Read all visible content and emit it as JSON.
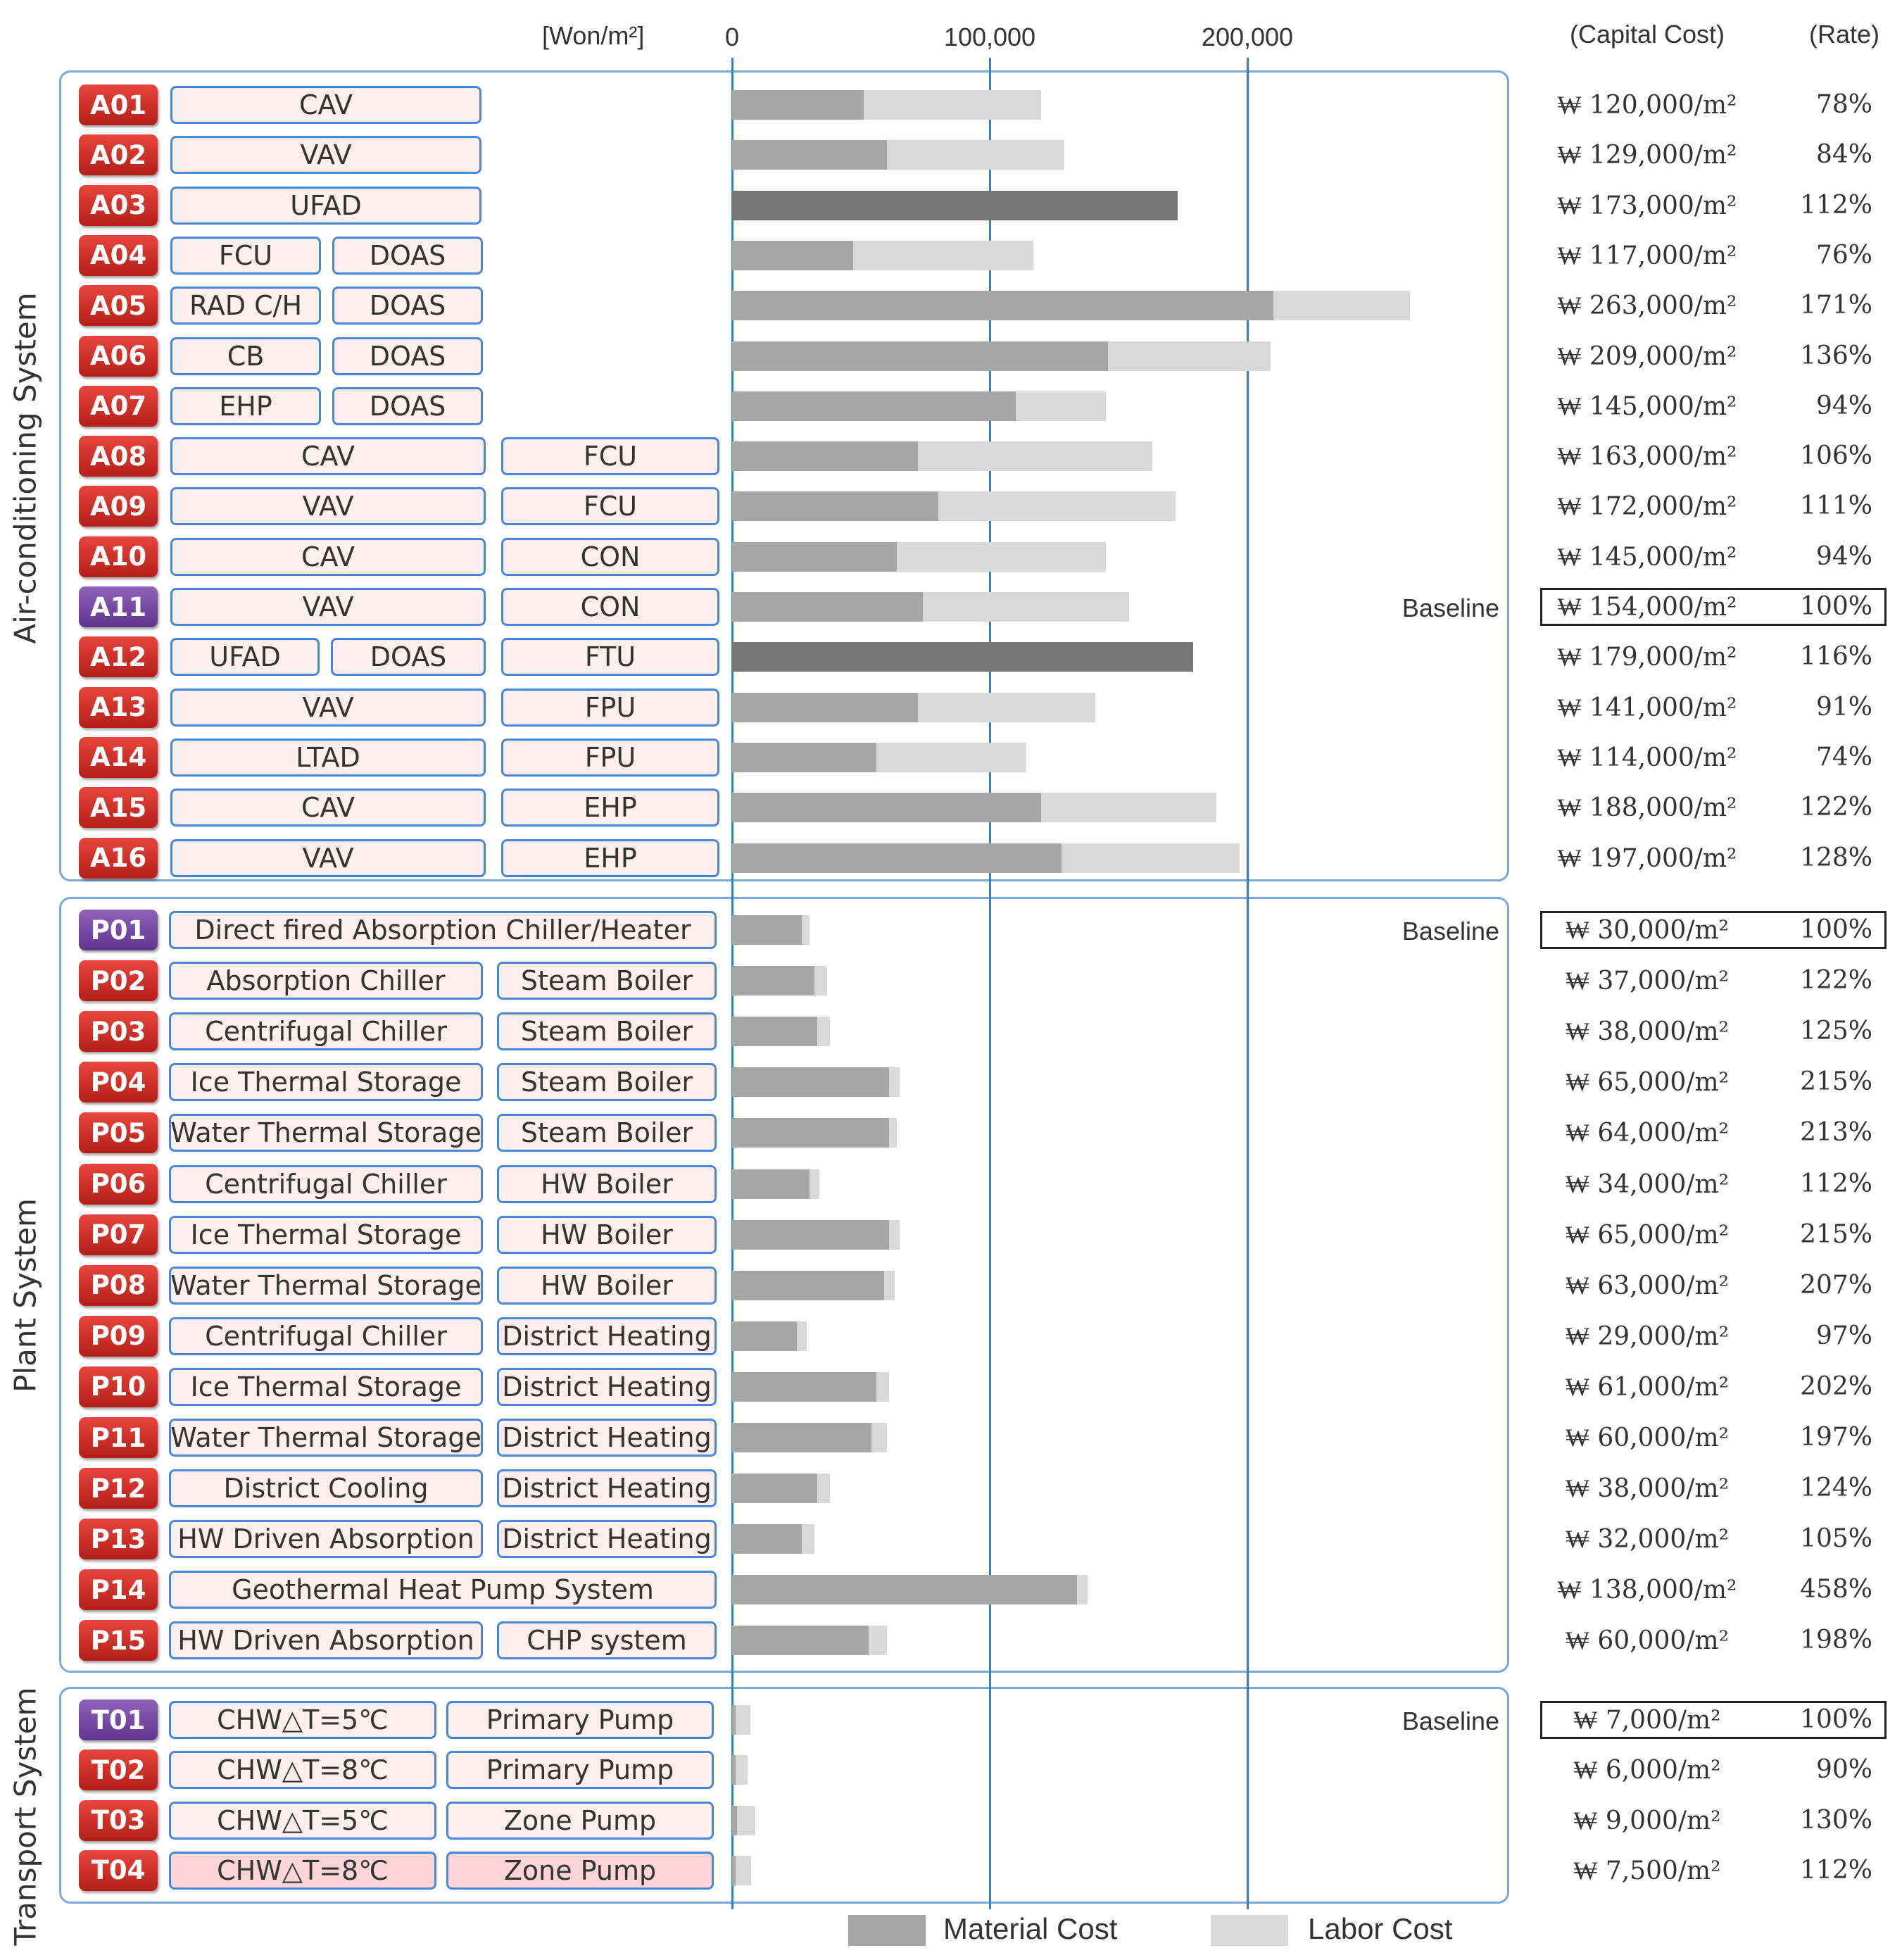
{
  "header": {
    "unit_label": "[Won/m²]",
    "capital_cost_header": "(Capital  Cost)",
    "rate_header": "(Rate)"
  },
  "sections": {
    "air": "Air-conditioning System",
    "plant": "Plant System",
    "transport": "Transport System"
  },
  "legend": {
    "material": "Material Cost",
    "labor": "Labor Cost"
  },
  "colors": {
    "material": "#a6a6a6",
    "labor": "#d9d9d9",
    "single_cost": "#767676",
    "badge_red": "#c8281f",
    "badge_purple": "#6e42a0",
    "axis": "#2f7ed8"
  },
  "chart_data": {
    "type": "bar",
    "orientation": "horizontal",
    "stacked": true,
    "xlim": [
      0,
      300000
    ],
    "ticks": [
      "0",
      "100,000",
      "200,000"
    ],
    "tick_values": [
      0,
      100000,
      200000
    ],
    "rows": [
      {
        "id": "A01",
        "components": [
          "CAV"
        ],
        "material": 51000,
        "labor": 69000,
        "cost": "₩ 120,000/m²",
        "rate": "78%"
      },
      {
        "id": "A02",
        "components": [
          "VAV"
        ],
        "material": 60000,
        "labor": 69000,
        "cost": "₩ 129,000/m²",
        "rate": "84%"
      },
      {
        "id": "A03",
        "components": [
          "UFAD"
        ],
        "single": 173000,
        "cost": "₩ 173,000/m²",
        "rate": "112%"
      },
      {
        "id": "A04",
        "components": [
          "FCU",
          "DOAS"
        ],
        "material": 47000,
        "labor": 70000,
        "cost": "₩ 117,000/m²",
        "rate": "76%"
      },
      {
        "id": "A05",
        "components": [
          "RAD C/H",
          "DOAS"
        ],
        "material": 210000,
        "labor": 53000,
        "cost": "₩ 263,000/m²",
        "rate": "171%"
      },
      {
        "id": "A06",
        "components": [
          "CB",
          "DOAS"
        ],
        "material": 146000,
        "labor": 63000,
        "cost": "₩ 209,000/m²",
        "rate": "136%"
      },
      {
        "id": "A07",
        "components": [
          "EHP",
          "DOAS"
        ],
        "material": 110000,
        "labor": 35000,
        "cost": "₩ 145,000/m²",
        "rate": "94%"
      },
      {
        "id": "A08",
        "components": [
          "CAV",
          "FCU"
        ],
        "material": 72000,
        "labor": 91000,
        "cost": "₩ 163,000/m²",
        "rate": "106%"
      },
      {
        "id": "A09",
        "components": [
          "VAV",
          "FCU"
        ],
        "material": 80000,
        "labor": 92000,
        "cost": "₩ 172,000/m²",
        "rate": "111%"
      },
      {
        "id": "A10",
        "components": [
          "CAV",
          "CON"
        ],
        "material": 64000,
        "labor": 81000,
        "cost": "₩ 145,000/m²",
        "rate": "94%"
      },
      {
        "id": "A11",
        "components": [
          "VAV",
          "CON"
        ],
        "material": 74000,
        "labor": 80000,
        "cost": "₩ 154,000/m²",
        "rate": "100%",
        "baseline": true,
        "baseline_label": "Baseline",
        "purple": true
      },
      {
        "id": "A12",
        "components": [
          "UFAD",
          "DOAS",
          "FTU"
        ],
        "single": 179000,
        "cost": "₩ 179,000/m²",
        "rate": "116%"
      },
      {
        "id": "A13",
        "components": [
          "VAV",
          "FPU"
        ],
        "material": 72000,
        "labor": 69000,
        "cost": "₩ 141,000/m²",
        "rate": "91%"
      },
      {
        "id": "A14",
        "components": [
          "LTAD",
          "FPU"
        ],
        "material": 56000,
        "labor": 58000,
        "cost": "₩ 114,000/m²",
        "rate": "74%"
      },
      {
        "id": "A15",
        "components": [
          "CAV",
          "EHP"
        ],
        "material": 120000,
        "labor": 68000,
        "cost": "₩ 188,000/m²",
        "rate": "122%"
      },
      {
        "id": "A16",
        "components": [
          "VAV",
          "EHP"
        ],
        "material": 128000,
        "labor": 69000,
        "cost": "₩ 197,000/m²",
        "rate": "128%"
      },
      {
        "id": "P01",
        "components": [
          "Direct fired  Absorption  Chiller/Heater"
        ],
        "material": 27000,
        "labor": 3000,
        "cost": "₩ 30,000/m²",
        "rate": "100%",
        "baseline": true,
        "baseline_label": "Baseline",
        "purple": true
      },
      {
        "id": "P02",
        "components": [
          "Absorption  Chiller",
          "Steam Boiler"
        ],
        "material": 32000,
        "labor": 5000,
        "cost": "₩ 37,000/m²",
        "rate": "122%"
      },
      {
        "id": "P03",
        "components": [
          "Centrifugal  Chiller",
          "Steam Boiler"
        ],
        "material": 33000,
        "labor": 5000,
        "cost": "₩ 38,000/m²",
        "rate": "125%"
      },
      {
        "id": "P04",
        "components": [
          "Ice Thermal  Storage",
          "Steam Boiler"
        ],
        "material": 61000,
        "labor": 4000,
        "cost": "₩ 65,000/m²",
        "rate": "215%"
      },
      {
        "id": "P05",
        "components": [
          "Water Thermal  Storage",
          "Steam Boiler"
        ],
        "material": 61000,
        "labor": 3000,
        "cost": "₩ 64,000/m²",
        "rate": "213%"
      },
      {
        "id": "P06",
        "components": [
          "Centrifugal  Chiller",
          "HW Boiler"
        ],
        "material": 30000,
        "labor": 4000,
        "cost": "₩ 34,000/m²",
        "rate": "112%"
      },
      {
        "id": "P07",
        "components": [
          "Ice Thermal  Storage",
          "HW Boiler"
        ],
        "material": 61000,
        "labor": 4000,
        "cost": "₩ 65,000/m²",
        "rate": "215%"
      },
      {
        "id": "P08",
        "components": [
          "Water Thermal  Storage",
          "HW Boiler"
        ],
        "material": 59000,
        "labor": 4000,
        "cost": "₩ 63,000/m²",
        "rate": "207%"
      },
      {
        "id": "P09",
        "components": [
          "Centrifugal  Chiller",
          "District Heating"
        ],
        "material": 25000,
        "labor": 4000,
        "cost": "₩ 29,000/m²",
        "rate": "97%"
      },
      {
        "id": "P10",
        "components": [
          "Ice Thermal  Storage",
          "District Heating"
        ],
        "material": 56000,
        "labor": 5000,
        "cost": "₩ 61,000/m²",
        "rate": "202%"
      },
      {
        "id": "P11",
        "components": [
          "Water Thermal  Storage",
          "District Heating"
        ],
        "material": 54000,
        "labor": 6000,
        "cost": "₩ 60,000/m²",
        "rate": "197%"
      },
      {
        "id": "P12",
        "components": [
          "District Cooling",
          "District Heating"
        ],
        "material": 33000,
        "labor": 5000,
        "cost": "₩ 38,000/m²",
        "rate": "124%"
      },
      {
        "id": "P13",
        "components": [
          "HW Driven  Absorption",
          "District Heating"
        ],
        "material": 27000,
        "labor": 5000,
        "cost": "₩ 32,000/m²",
        "rate": "105%"
      },
      {
        "id": "P14",
        "components": [
          "Geothermal  Heat  Pump System"
        ],
        "material": 134000,
        "labor": 4000,
        "cost": "₩ 138,000/m²",
        "rate": "458%"
      },
      {
        "id": "P15",
        "components": [
          "HW Driven  Absorption",
          "CHP system"
        ],
        "material": 53000,
        "labor": 7000,
        "cost": "₩ 60,000/m²",
        "rate": "198%"
      },
      {
        "id": "T01",
        "components": [
          "CHW△T=5℃",
          "Primary Pump"
        ],
        "material": 1500,
        "labor": 5500,
        "cost": "₩ 7,000/m²",
        "rate": "100%",
        "baseline": true,
        "baseline_label": "Baseline",
        "purple": true
      },
      {
        "id": "T02",
        "components": [
          "CHW△T=8℃",
          "Primary Pump"
        ],
        "material": 1500,
        "labor": 4500,
        "cost": "₩ 6,000/m²",
        "rate": "90%"
      },
      {
        "id": "T03",
        "components": [
          "CHW△T=5℃",
          "Zone Pump"
        ],
        "material": 2000,
        "labor": 7000,
        "cost": "₩ 9,000/m²",
        "rate": "130%"
      },
      {
        "id": "T04",
        "components": [
          "CHW△T=8℃",
          "Zone Pump"
        ],
        "material": 1500,
        "labor": 6000,
        "cost": "₩ 7,500/m²",
        "rate": "112%",
        "pink": true
      }
    ]
  }
}
